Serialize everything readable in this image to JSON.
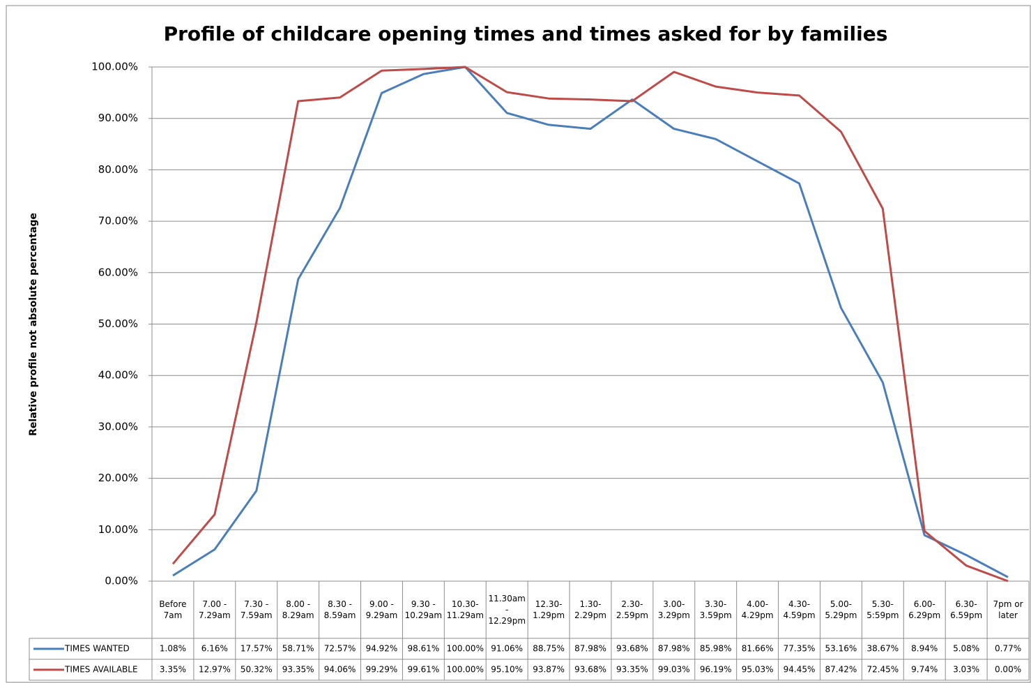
{
  "chart_data": {
    "type": "line",
    "title": "Profile of childcare opening times and times asked for by families",
    "y_label": "Relative profile not absolute percentage",
    "categories": [
      "Before 7am",
      "7.00 - 7.29am",
      "7.30 - 7.59am",
      "8.00 - 8.29am",
      "8.30 - 8.59am",
      "9.00 - 9.29am",
      "9.30 - 10.29am",
      "10.30- 11.29am",
      "11.30am - 12.29pm",
      "12.30- 1.29pm",
      "1.30- 2.29pm",
      "2.30- 2.59pm",
      "3.00- 3.29pm",
      "3.30- 3.59pm",
      "4.00- 4.29pm",
      "4.30- 4.59pm",
      "5.00- 5.29pm",
      "5.30- 5:59pm",
      "6.00- 6.29pm",
      "6.30- 6.59pm",
      "7pm or later"
    ],
    "series": [
      {
        "name": "TIMES WANTED",
        "color": "#4a7ebb",
        "values": [
          1.08,
          6.16,
          17.57,
          58.71,
          72.57,
          94.92,
          98.61,
          100,
          91.06,
          88.75,
          87.98,
          93.68,
          87.98,
          85.98,
          81.66,
          77.35,
          53.16,
          38.67,
          8.94,
          5.08,
          0.77
        ],
        "value_labels": [
          "1.08%",
          "6.16%",
          "17.57%",
          "58.71%",
          "72.57%",
          "94.92%",
          "98.61%",
          "100.00%",
          "91.06%",
          "88.75%",
          "87.98%",
          "93.68%",
          "87.98%",
          "85.98%",
          "81.66%",
          "77.35%",
          "53.16%",
          "38.67%",
          "8.94%",
          "5.08%",
          "0.77%"
        ]
      },
      {
        "name": "TIMES AVAILABLE",
        "color": "#be4b48",
        "values": [
          3.35,
          12.97,
          50.32,
          93.35,
          94.06,
          99.29,
          99.61,
          100,
          95.1,
          93.87,
          93.68,
          93.35,
          99.03,
          96.19,
          95.03,
          94.45,
          87.42,
          72.45,
          9.74,
          3.03,
          0.0
        ],
        "value_labels": [
          "3.35%",
          "12.97%",
          "50.32%",
          "93.35%",
          "94.06%",
          "99.29%",
          "99.61%",
          "100.00%",
          "95.10%",
          "93.87%",
          "93.68%",
          "93.35%",
          "99.03%",
          "96.19%",
          "95.03%",
          "94.45%",
          "87.42%",
          "72.45%",
          "9.74%",
          "3.03%",
          "0.00%"
        ]
      }
    ],
    "ylim": [
      0,
      100
    ],
    "yticks": [
      {
        "value": 0,
        "label": "0.00%"
      },
      {
        "value": 10,
        "label": "10.00%"
      },
      {
        "value": 20,
        "label": "20.00%"
      },
      {
        "value": 30,
        "label": "30.00%"
      },
      {
        "value": 40,
        "label": "40.00%"
      },
      {
        "value": 50,
        "label": "50.00%"
      },
      {
        "value": 60,
        "label": "60.00%"
      },
      {
        "value": 70,
        "label": "70.00%"
      },
      {
        "value": 80,
        "label": "80.00%"
      },
      {
        "value": 90,
        "label": "90.00%"
      },
      {
        "value": 100,
        "label": "100.00%"
      }
    ],
    "grid": true
  }
}
